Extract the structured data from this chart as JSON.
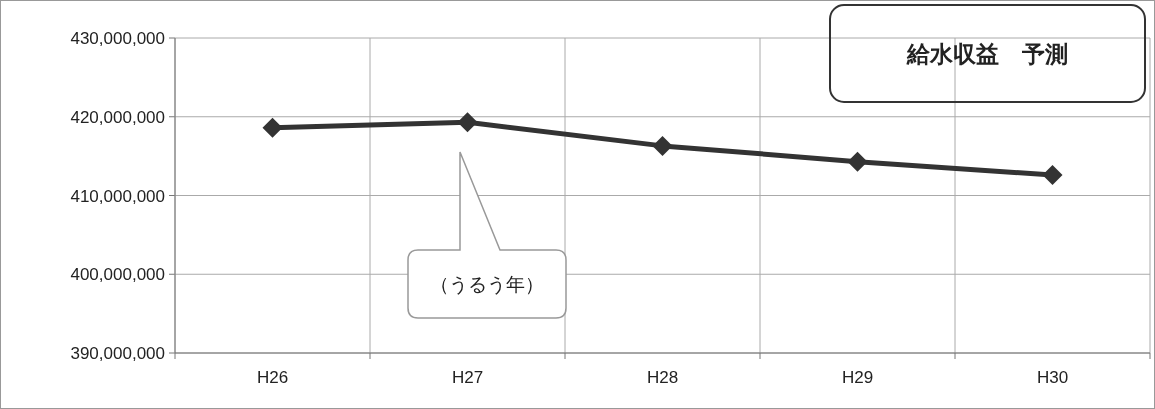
{
  "chart_data": {
    "type": "line",
    "title": "給水収益　予測",
    "categories": [
      "H26",
      "H27",
      "H28",
      "H29",
      "H30"
    ],
    "series": [
      {
        "color": "#333333",
        "values": [
          418600000,
          419300000,
          416300000,
          414300000,
          412600000
        ]
      }
    ],
    "ylim": [
      390000000,
      430000000
    ],
    "yticks": [
      {
        "value": 390000000,
        "label": "390,000,000"
      },
      {
        "value": 400000000,
        "label": "400,000,000"
      },
      {
        "value": 410000000,
        "label": "410,000,000"
      },
      {
        "value": 420000000,
        "label": "420,000,000"
      },
      {
        "value": 430000000,
        "label": "430,000,000"
      }
    ],
    "grid": true,
    "marker": "diamond",
    "line_style": "solid",
    "annotations": [
      "（うるう年）"
    ]
  }
}
